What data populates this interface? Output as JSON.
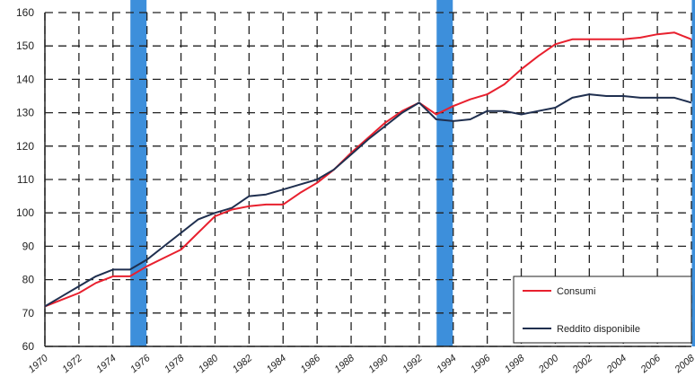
{
  "chart_data": {
    "type": "line",
    "title": "",
    "xlabel": "",
    "ylabel": "",
    "xlim": [
      1970,
      2008
    ],
    "ylim": [
      60,
      160
    ],
    "y_ticks": [
      60,
      70,
      80,
      90,
      100,
      110,
      120,
      130,
      140,
      150,
      160
    ],
    "y_tick_labels": [
      "60",
      "70",
      "80",
      "90",
      "100",
      "110",
      "120",
      "130",
      "140",
      "150",
      "160"
    ],
    "x_ticks": [
      1970,
      1972,
      1974,
      1976,
      1978,
      1980,
      1982,
      1984,
      1986,
      1988,
      1990,
      1992,
      1994,
      1996,
      1998,
      2000,
      2002,
      2004,
      2006,
      2008
    ],
    "x_tick_labels": [
      "1970",
      "1972",
      "1974",
      "1976",
      "1978",
      "1980",
      "1982",
      "1984",
      "1986",
      "1988",
      "1990",
      "1992",
      "1994",
      "1996",
      "1998",
      "2000",
      "2002",
      "2004",
      "2006",
      "2008"
    ],
    "grid": true,
    "recession_bands": [
      1975.5,
      1993.5,
      2008.5
    ],
    "legend": {
      "placement": "bottom-right",
      "entries": [
        "Consumi",
        "Reddito disponibile"
      ]
    },
    "series": [
      {
        "name": "Consumi",
        "color": "#e8202e",
        "x": [
          1970,
          1971,
          1972,
          1973,
          1974,
          1975,
          1976,
          1977,
          1978,
          1979,
          1980,
          1981,
          1982,
          1983,
          1984,
          1985,
          1986,
          1987,
          1988,
          1989,
          1990,
          1991,
          1992,
          1993,
          1994,
          1995,
          1996,
          1997,
          1998,
          1999,
          2000,
          2001,
          2002,
          2003,
          2004,
          2005,
          2006,
          2007,
          2008
        ],
        "y": [
          72,
          74,
          76,
          79,
          81,
          81,
          84,
          86.5,
          89,
          94,
          99,
          101,
          102,
          102.5,
          102.5,
          106,
          109,
          113,
          118,
          122.5,
          127,
          130.5,
          133,
          129.5,
          132,
          134,
          135.5,
          138.5,
          143,
          147,
          150.5,
          152,
          152,
          152,
          152,
          152.5,
          153.5,
          154,
          152
        ]
      },
      {
        "name": "Reddito disponibile",
        "color": "#1f2f4f",
        "x": [
          1970,
          1971,
          1972,
          1973,
          1974,
          1975,
          1976,
          1977,
          1978,
          1979,
          1980,
          1981,
          1982,
          1983,
          1984,
          1985,
          1986,
          1987,
          1988,
          1989,
          1990,
          1991,
          1992,
          1993,
          1994,
          1995,
          1996,
          1997,
          1998,
          1999,
          2000,
          2001,
          2002,
          2003,
          2004,
          2005,
          2006,
          2007,
          2008
        ],
        "y": [
          72,
          75,
          78,
          81,
          83,
          83,
          86,
          90,
          94,
          98,
          100,
          101.5,
          105,
          105.5,
          107,
          108.5,
          110,
          113,
          117.5,
          122,
          126,
          130,
          133,
          128,
          127.5,
          128,
          130.5,
          130.5,
          129.5,
          130.5,
          131.5,
          134.5,
          135.5,
          135,
          135,
          134.5,
          134.5,
          134.5,
          133
        ]
      }
    ]
  }
}
